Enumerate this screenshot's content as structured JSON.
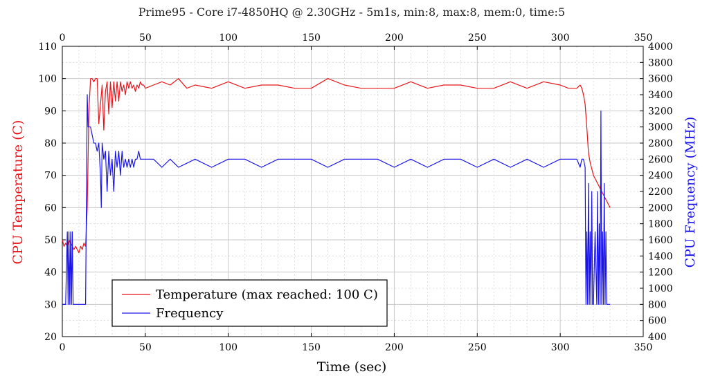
{
  "chart_data": {
    "type": "line",
    "title": "Prime95 - Core i7-4850HQ @ 2.30GHz - 5m1s, min:8, max:8, mem:0, time:5",
    "xlabel": "Time (sec)",
    "ylabel_left": "CPU Temperature (C)",
    "ylabel_right": "CPU Frequency (MHz)",
    "xlim": [
      0,
      350
    ],
    "ylim_left": [
      20,
      110
    ],
    "ylim_right": [
      400,
      4000
    ],
    "x_ticks": [
      0,
      50,
      100,
      150,
      200,
      250,
      300,
      350
    ],
    "y_ticks_left": [
      20,
      30,
      40,
      50,
      60,
      70,
      80,
      90,
      100,
      110
    ],
    "y_ticks_right": [
      400,
      600,
      800,
      1000,
      1200,
      1400,
      1600,
      1800,
      2000,
      2200,
      2400,
      2600,
      2800,
      3000,
      3200,
      3400,
      3600,
      3800,
      4000
    ],
    "grid": true,
    "legend_position": "bottom-left",
    "colors": {
      "temperature": "#e8141a",
      "frequency": "#1a14e8"
    },
    "series": [
      {
        "name": "Temperature (max reached: 100 C)",
        "axis": "left",
        "x": [
          0,
          1,
          2,
          3,
          4,
          5,
          6,
          7,
          8,
          9,
          10,
          11,
          12,
          13,
          14,
          15,
          16,
          17,
          18,
          19,
          20,
          21,
          22,
          23,
          24,
          25,
          26,
          27,
          28,
          29,
          30,
          31,
          32,
          33,
          34,
          35,
          36,
          37,
          38,
          39,
          40,
          41,
          42,
          43,
          44,
          45,
          46,
          47,
          48,
          49,
          50,
          55,
          60,
          65,
          70,
          75,
          80,
          90,
          100,
          110,
          120,
          130,
          140,
          150,
          160,
          170,
          180,
          190,
          200,
          210,
          220,
          230,
          240,
          250,
          260,
          270,
          280,
          290,
          300,
          305,
          310,
          312,
          313,
          314,
          315,
          316,
          317,
          318,
          319,
          320,
          322,
          324,
          326,
          328,
          330
        ],
        "values": [
          50,
          48,
          49,
          48,
          50,
          49,
          48,
          47,
          48,
          47,
          46,
          48,
          47,
          49,
          48,
          60,
          90,
          100,
          100,
          99,
          100,
          100,
          86,
          92,
          98,
          84,
          96,
          99,
          89,
          99,
          91,
          99,
          93,
          99,
          93,
          99,
          96,
          98,
          95,
          99,
          97,
          99,
          97,
          98,
          96,
          98,
          97,
          99,
          98,
          98,
          97,
          98,
          99,
          98,
          100,
          97,
          98,
          97,
          99,
          97,
          98,
          98,
          97,
          97,
          100,
          98,
          97,
          97,
          97,
          99,
          97,
          98,
          98,
          97,
          97,
          99,
          97,
          99,
          98,
          97,
          97,
          98,
          97,
          95,
          92,
          85,
          77,
          74,
          72,
          70,
          68,
          66,
          64,
          62,
          60
        ]
      },
      {
        "name": "Frequency",
        "axis": "right",
        "x": [
          0,
          1,
          2,
          3,
          3.5,
          4,
          4.5,
          5,
          5.5,
          6,
          6.5,
          7,
          8,
          10,
          12,
          13,
          14,
          15,
          15.5,
          16,
          17,
          18,
          19,
          20,
          21,
          22,
          23,
          23.5,
          24,
          25,
          26,
          27,
          28,
          29,
          30,
          31,
          32,
          33,
          34,
          35,
          36,
          37,
          38,
          39,
          40,
          41,
          42,
          43,
          44,
          45,
          46,
          47,
          48,
          50,
          55,
          60,
          65,
          70,
          80,
          90,
          100,
          110,
          120,
          130,
          140,
          150,
          160,
          170,
          180,
          190,
          200,
          210,
          220,
          230,
          240,
          250,
          260,
          270,
          280,
          290,
          300,
          305,
          310,
          312,
          313,
          314,
          315,
          315.5,
          316,
          316.5,
          317,
          317.5,
          318,
          318.5,
          319,
          319.5,
          320,
          321,
          322,
          322.5,
          323,
          323.5,
          324,
          324.5,
          325,
          325.5,
          326,
          326.5,
          327,
          327.5,
          328,
          328.5,
          329,
          330
        ],
        "values": [
          800,
          800,
          800,
          1700,
          800,
          1700,
          800,
          1700,
          800,
          1700,
          800,
          800,
          800,
          800,
          800,
          800,
          800,
          3400,
          3000,
          3000,
          3000,
          2900,
          2800,
          2800,
          2700,
          2800,
          2400,
          2000,
          2800,
          2600,
          2700,
          2200,
          2700,
          2400,
          2600,
          2200,
          2700,
          2500,
          2700,
          2400,
          2700,
          2500,
          2600,
          2500,
          2600,
          2500,
          2600,
          2500,
          2600,
          2600,
          2700,
          2600,
          2600,
          2600,
          2600,
          2500,
          2600,
          2500,
          2600,
          2500,
          2600,
          2600,
          2500,
          2600,
          2600,
          2600,
          2500,
          2600,
          2600,
          2600,
          2500,
          2600,
          2500,
          2600,
          2600,
          2500,
          2600,
          2500,
          2600,
          2500,
          2600,
          2600,
          2600,
          2500,
          2600,
          2600,
          2500,
          800,
          1700,
          800,
          2300,
          800,
          1700,
          800,
          2200,
          800,
          800,
          1700,
          800,
          2200,
          800,
          1800,
          800,
          3200,
          800,
          1700,
          800,
          2300,
          800,
          1700,
          800,
          800,
          800,
          800
        ]
      }
    ]
  }
}
